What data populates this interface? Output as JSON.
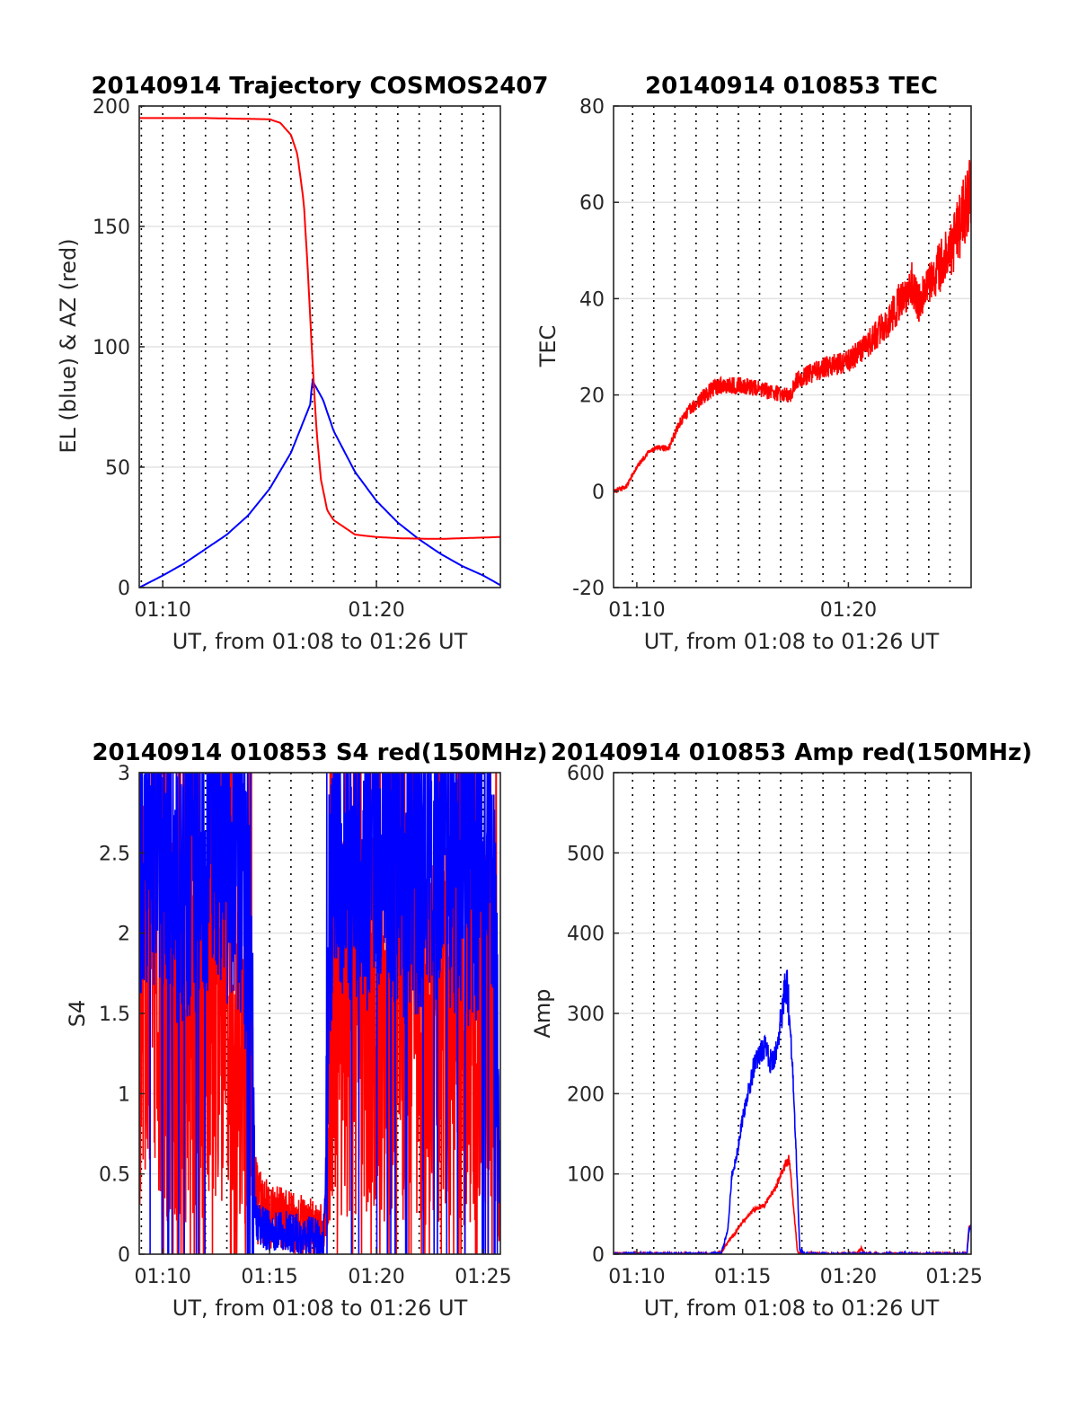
{
  "chart_data": [
    {
      "id": "traj",
      "type": "line",
      "title": "20140914 Trajectory COSMOS2407",
      "xlabel": "UT, from 01:08 to 01:26 UT",
      "ylabel": "EL (blue) & AZ (red)",
      "xlim": [
        8.9,
        25.8
      ],
      "ylim": [
        0,
        200
      ],
      "xticks": [
        {
          "value": 10,
          "label": "01:10"
        },
        {
          "value": 20,
          "label": "01:20"
        }
      ],
      "yticks": [
        {
          "value": 0,
          "label": "0"
        },
        {
          "value": 50,
          "label": "50"
        },
        {
          "value": 100,
          "label": "100"
        },
        {
          "value": 150,
          "label": "150"
        },
        {
          "value": 200,
          "label": "200"
        }
      ],
      "vlines": [
        9.0,
        10.0,
        11.0,
        12.0,
        13.0,
        14.0,
        15.0,
        16.0,
        17.0,
        18.0,
        19.0,
        20.0,
        21.0,
        22.0,
        23.0,
        24.0,
        25.0
      ],
      "series": [
        {
          "name": "EL",
          "color": "#0000ff",
          "noise": 0,
          "x": [
            8.9,
            10.0,
            11.0,
            12.0,
            13.0,
            14.0,
            15.0,
            16.0,
            16.9,
            17.0,
            17.5,
            18.0,
            19.0,
            20.0,
            21.0,
            22.0,
            23.0,
            24.0,
            25.0,
            25.8
          ],
          "y": [
            0,
            5,
            10,
            16,
            22,
            30,
            41,
            56,
            76,
            86,
            78,
            65,
            48,
            36,
            27,
            20,
            14,
            9,
            5,
            1
          ]
        },
        {
          "name": "AZ",
          "color": "#ff0000",
          "noise": 0,
          "x": [
            8.9,
            12.0,
            15.0,
            15.5,
            16.0,
            16.3,
            16.6,
            16.8,
            17.0,
            17.2,
            17.4,
            17.7,
            18.0,
            18.5,
            19.0,
            20.0,
            21.0,
            22.0,
            23.0,
            25.8
          ],
          "y": [
            195,
            195,
            194.5,
            193,
            188,
            180,
            160,
            130,
            95,
            65,
            45,
            32,
            28,
            25,
            22,
            21,
            20.5,
            20.3,
            20.2,
            21
          ]
        }
      ]
    },
    {
      "id": "tec",
      "type": "line",
      "title": "20140914 010853 TEC",
      "xlabel": "UT, from 01:08 to 01:26 UT",
      "ylabel": "TEC",
      "xlim": [
        8.9,
        25.8
      ],
      "ylim": [
        -20,
        80
      ],
      "xticks": [
        {
          "value": 10,
          "label": "01:10"
        },
        {
          "value": 20,
          "label": "01:20"
        }
      ],
      "yticks": [
        {
          "value": -20,
          "label": "-20"
        },
        {
          "value": 0,
          "label": "0"
        },
        {
          "value": 20,
          "label": "20"
        },
        {
          "value": 40,
          "label": "40"
        },
        {
          "value": 60,
          "label": "60"
        },
        {
          "value": 80,
          "label": "80"
        }
      ],
      "vlines": [
        9.8,
        10.8,
        11.8,
        12.8,
        13.8,
        14.8,
        15.8,
        16.8,
        17.8,
        18.8,
        19.8,
        20.8,
        21.8,
        22.8,
        23.8,
        24.8
      ],
      "series": [
        {
          "name": "TEC",
          "color": "#ff0000",
          "noise": 0.8,
          "x": [
            9.0,
            9.5,
            10.0,
            10.5,
            11.0,
            11.5,
            12.0,
            12.5,
            13.0,
            13.5,
            14.0,
            15.0,
            16.0,
            17.0,
            17.3,
            17.5,
            18.0,
            19.0,
            20.0,
            20.5,
            21.0,
            22.0,
            22.5,
            23.0,
            23.3,
            23.5,
            24.0,
            25.0,
            25.8
          ],
          "y": [
            0,
            1,
            5,
            8,
            9,
            9,
            14,
            17,
            19,
            21,
            22,
            22,
            21,
            20,
            20,
            23,
            24,
            26,
            27,
            29,
            31,
            36,
            40,
            43,
            39,
            41,
            44,
            52,
            62
          ]
        }
      ]
    },
    {
      "id": "s4",
      "type": "line",
      "title": "20140914 010853 S4 red(150MHz)",
      "xlabel": "UT, from 01:08 to 01:26 UT",
      "ylabel": "S4",
      "xlim": [
        8.9,
        25.8
      ],
      "ylim": [
        0,
        3
      ],
      "xticks": [
        {
          "value": 10,
          "label": "01:10"
        },
        {
          "value": 15,
          "label": "01:15"
        },
        {
          "value": 20,
          "label": "01:20"
        },
        {
          "value": 25,
          "label": "01:25"
        }
      ],
      "yticks": [
        {
          "value": 0,
          "label": "0"
        },
        {
          "value": 0.5,
          "label": "0.5"
        },
        {
          "value": 1,
          "label": "1"
        },
        {
          "value": 1.5,
          "label": "1.5"
        },
        {
          "value": 2,
          "label": "2"
        },
        {
          "value": 2.5,
          "label": "2.5"
        },
        {
          "value": 3,
          "label": "3"
        }
      ],
      "vlines": [
        9.0,
        10.0,
        11.0,
        12.0,
        13.0,
        14.0,
        15.0,
        16.0,
        17.0,
        18.0,
        19.0,
        20.0,
        21.0,
        22.0,
        23.0,
        24.0,
        25.0
      ],
      "series": [
        {
          "name": "S4 red",
          "color": "#ff0000",
          "noise": 1.3,
          "clip": true,
          "x": [
            8.9,
            9.5,
            10.5,
            11.5,
            12.5,
            13.5,
            14.2,
            14.3,
            14.5,
            15.0,
            16.0,
            17.0,
            17.5,
            17.6,
            17.8,
            18.5,
            19.5,
            20.5,
            21.5,
            22.5,
            23.5,
            24.5,
            25.5,
            25.8
          ],
          "y": [
            1.6,
            1.7,
            1.4,
            1.3,
            1.6,
            1.2,
            1.0,
            0.35,
            0.3,
            0.25,
            0.2,
            0.15,
            0.12,
            0.2,
            1.2,
            1.4,
            1.5,
            1.4,
            1.5,
            1.3,
            1.4,
            1.3,
            1.5,
            0.3
          ]
        },
        {
          "name": "S4 blue",
          "color": "#0000ff",
          "noise": 0.9,
          "clip": true,
          "x": [
            8.9,
            9.5,
            10.5,
            11.5,
            12.5,
            13.5,
            14.2,
            14.3,
            14.5,
            15.0,
            16.0,
            17.0,
            17.5,
            17.6,
            17.8,
            18.5,
            19.5,
            20.5,
            21.5,
            22.5,
            23.5,
            24.5,
            25.5,
            25.8
          ],
          "y": [
            2.5,
            2.6,
            2.3,
            2.4,
            2.6,
            2.3,
            2.0,
            0.25,
            0.18,
            0.15,
            0.13,
            0.1,
            0.08,
            0.3,
            2.2,
            2.5,
            2.4,
            2.5,
            2.3,
            2.5,
            2.4,
            2.3,
            2.4,
            0.2
          ]
        }
      ]
    },
    {
      "id": "amp",
      "type": "line",
      "title": "20140914 010853 Amp red(150MHz)",
      "xlabel": "UT, from 01:08 to 01:26 UT",
      "ylabel": "Amp",
      "xlim": [
        8.9,
        25.8
      ],
      "ylim": [
        0,
        600
      ],
      "xticks": [
        {
          "value": 10,
          "label": "01:10"
        },
        {
          "value": 15,
          "label": "01:15"
        },
        {
          "value": 20,
          "label": "01:20"
        },
        {
          "value": 25,
          "label": "01:25"
        }
      ],
      "yticks": [
        {
          "value": 0,
          "label": "0"
        },
        {
          "value": 100,
          "label": "100"
        },
        {
          "value": 200,
          "label": "200"
        },
        {
          "value": 300,
          "label": "300"
        },
        {
          "value": 400,
          "label": "400"
        },
        {
          "value": 500,
          "label": "500"
        },
        {
          "value": 600,
          "label": "600"
        }
      ],
      "vlines": [
        9.8,
        10.8,
        11.8,
        12.8,
        13.8,
        14.8,
        15.8,
        16.8,
        17.8,
        18.8,
        19.8,
        20.8,
        21.8,
        22.8,
        23.8,
        24.8
      ],
      "series": [
        {
          "name": "Amp red",
          "color": "#ff0000",
          "noise": 0.5,
          "x": [
            8.9,
            13.5,
            14.0,
            14.3,
            14.6,
            15.0,
            15.5,
            16.0,
            16.5,
            17.0,
            17.2,
            17.4,
            17.6,
            18.0,
            20.4,
            20.6,
            20.8,
            21.0,
            25.6,
            25.7,
            25.8
          ],
          "y": [
            0,
            0,
            2,
            15,
            25,
            40,
            55,
            60,
            80,
            110,
            120,
            60,
            2,
            0,
            0,
            8,
            0,
            0,
            0,
            35,
            30
          ]
        },
        {
          "name": "Amp blue",
          "color": "#0000ff",
          "noise": 0.5,
          "x": [
            8.9,
            13.5,
            14.0,
            14.3,
            14.5,
            14.7,
            15.0,
            15.5,
            16.0,
            16.3,
            16.6,
            17.0,
            17.1,
            17.3,
            17.5,
            17.7,
            18.0,
            25.6,
            25.7,
            25.8
          ],
          "y": [
            0,
            0,
            2,
            30,
            100,
            120,
            170,
            230,
            260,
            240,
            250,
            330,
            340,
            260,
            150,
            5,
            0,
            0,
            30,
            35
          ]
        }
      ]
    }
  ]
}
